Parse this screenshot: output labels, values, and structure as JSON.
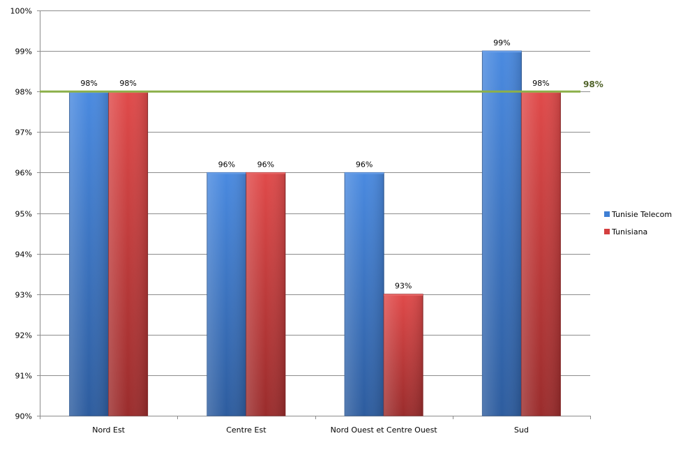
{
  "chart_data": {
    "type": "bar",
    "categories": [
      "Nord Est",
      "Centre Est",
      "Nord Ouest et Centre Ouest",
      "Sud"
    ],
    "series": [
      {
        "name": "Tunisie Telecom",
        "values": [
          98,
          96,
          96,
          99
        ],
        "labels": [
          "98%",
          "96%",
          "96%",
          "99%"
        ],
        "color": "#3f7fd4"
      },
      {
        "name": "Tunisiana",
        "values": [
          98,
          96,
          93,
          98
        ],
        "labels": [
          "98%",
          "96%",
          "93%",
          "98%"
        ],
        "color": "#d43f3f"
      }
    ],
    "ylim": [
      90,
      100
    ],
    "ytick_labels": [
      "90%",
      "91%",
      "92%",
      "93%",
      "94%",
      "95%",
      "96%",
      "97%",
      "98%",
      "99%",
      "100%"
    ],
    "reference_line": {
      "value": 98,
      "label": "98%",
      "color": "#8cb04a",
      "label_color": "#4f6228"
    },
    "grid": true,
    "legend_position": "right"
  }
}
